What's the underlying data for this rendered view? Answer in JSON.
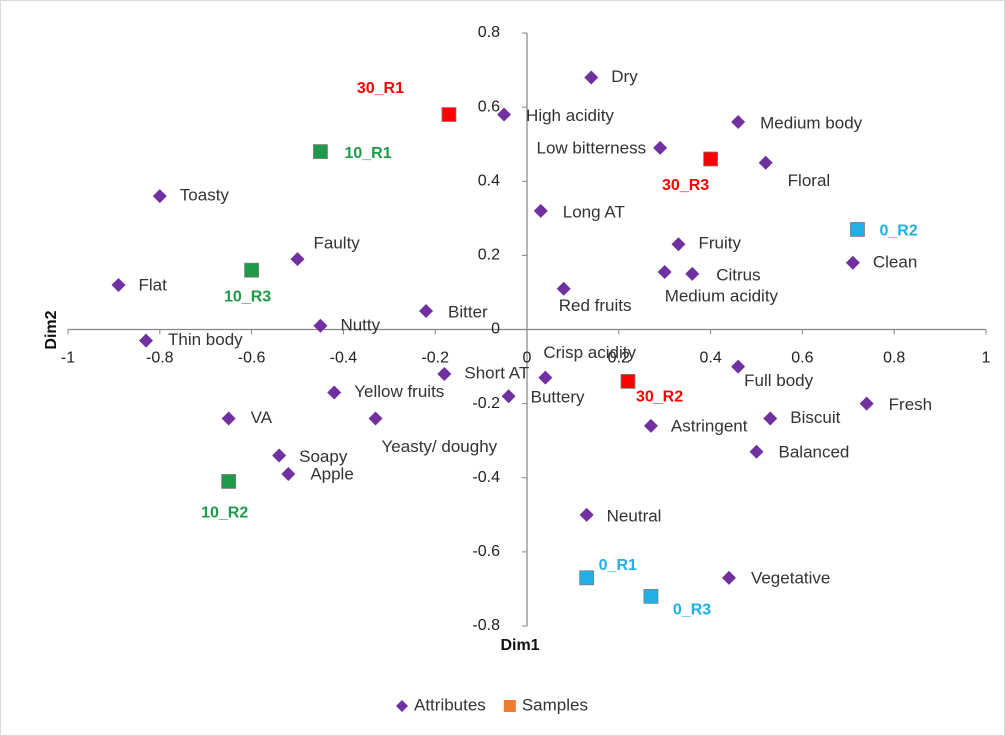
{
  "chart_data": {
    "type": "scatter",
    "xlabel": "Dim1",
    "ylabel": "Dim2",
    "xlim": [
      -1,
      1
    ],
    "ylim": [
      -0.8,
      0.8
    ],
    "xticks": [
      -1,
      -0.8,
      -0.6,
      -0.4,
      -0.2,
      0,
      0.2,
      0.4,
      0.6,
      0.8,
      1
    ],
    "yticks": [
      -0.8,
      -0.6,
      -0.4,
      -0.2,
      0,
      0.2,
      0.4,
      0.6,
      0.8
    ],
    "grid": false,
    "legend": "bottom",
    "series": [
      {
        "name": "Attributes",
        "color": "#7030a0",
        "marker": "diamond",
        "labels": [
          "Dry",
          "High acidity",
          "Medium body",
          "Low bitterness",
          "Floral",
          "Toasty",
          "Long AT",
          "Fruity",
          "Faulty",
          "Clean",
          "Citrus",
          "Medium acidity",
          "Flat",
          "Red fruits",
          "Bitter",
          "Nutty",
          "Thin body",
          "Full body",
          "Short AT",
          "Crisp acidity",
          "Yellow fruits",
          "Buttery",
          "Fresh",
          "VA",
          "Yeasty/ doughy",
          "Biscuit",
          "Astringent",
          "Balanced",
          "Soapy",
          "Apple",
          "Neutral",
          "Vegetative"
        ],
        "x": [
          0.14,
          -0.05,
          0.46,
          0.29,
          0.52,
          -0.8,
          0.03,
          0.33,
          -0.5,
          0.71,
          0.36,
          0.3,
          -0.89,
          0.08,
          -0.22,
          -0.45,
          -0.83,
          0.46,
          -0.18,
          0.04,
          -0.42,
          -0.04,
          0.74,
          -0.65,
          -0.33,
          0.53,
          0.27,
          0.5,
          -0.54,
          -0.52,
          0.13,
          0.44
        ],
        "y": [
          0.68,
          0.58,
          0.56,
          0.49,
          0.45,
          0.36,
          0.32,
          0.23,
          0.19,
          0.18,
          0.15,
          0.155,
          0.12,
          0.11,
          0.05,
          0.01,
          -0.03,
          -0.1,
          -0.12,
          -0.13,
          -0.17,
          -0.18,
          -0.2,
          -0.24,
          -0.24,
          -0.24,
          -0.26,
          -0.33,
          -0.34,
          -0.39,
          -0.5,
          -0.67
        ]
      },
      {
        "name": "Samples",
        "color": "#ed7d31",
        "marker": "square",
        "labels": [
          "30_R1",
          "10_R1",
          "30_R3",
          "0_R2",
          "10_R3",
          "30_R2",
          "10_R2",
          "0_R1",
          "0_R3"
        ],
        "x": [
          -0.17,
          -0.45,
          0.4,
          0.72,
          -0.6,
          0.22,
          -0.65,
          0.13,
          0.27
        ],
        "y": [
          0.58,
          0.48,
          0.46,
          0.27,
          0.16,
          -0.14,
          -0.41,
          -0.67,
          -0.72
        ],
        "point_colors": [
          "#ff0000",
          "#1f9a48",
          "#ff0000",
          "#1eb0e6",
          "#1f9a48",
          "#ff0000",
          "#1f9a48",
          "#1eb0e6",
          "#1eb0e6"
        ]
      }
    ]
  }
}
